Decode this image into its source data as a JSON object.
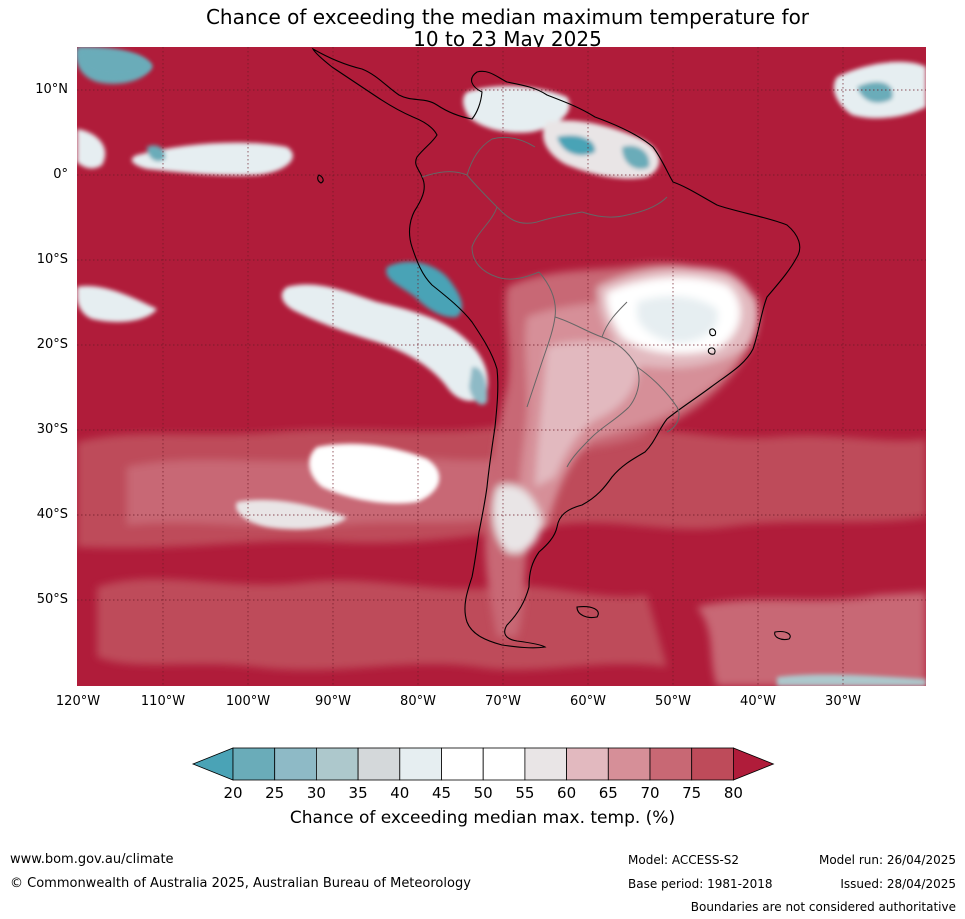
{
  "title_line1": "Chance of exceeding the median maximum temperature for",
  "title_line2": "10 to 23 May 2025",
  "lat_labels": [
    "10°N",
    "0°",
    "10°S",
    "20°S",
    "30°S",
    "40°S",
    "50°S"
  ],
  "lon_labels": [
    "120°W",
    "110°W",
    "100°W",
    "90°W",
    "80°W",
    "70°W",
    "60°W",
    "50°W",
    "40°W",
    "30°W"
  ],
  "colorbar": {
    "ticks": [
      "20",
      "25",
      "30",
      "35",
      "40",
      "45",
      "50",
      "55",
      "60",
      "65",
      "70",
      "75",
      "80"
    ],
    "colors": [
      "#4aa3b6",
      "#6aacb9",
      "#8ebac6",
      "#adc8cc",
      "#d4d8da",
      "#e6eef1",
      "#ffffff",
      "#ffffff",
      "#e9e5e6",
      "#e2b9bf",
      "#d68f98",
      "#c86874",
      "#be4b5a",
      "#b01c3a"
    ],
    "label": "Chance of exceeding median max. temp. (%)"
  },
  "footer": {
    "website": "www.bom.gov.au/climate",
    "copyright": "© Commonwealth of Australia 2025, Australian Bureau of Meteorology",
    "model": "Model: ACCESS-S2",
    "base_period": "Base period: 1981-2018",
    "model_run": "Model run: 26/04/2025",
    "issued": "Issued: 28/04/2025",
    "disclaimer": "Boundaries are not considered authoritative"
  }
}
